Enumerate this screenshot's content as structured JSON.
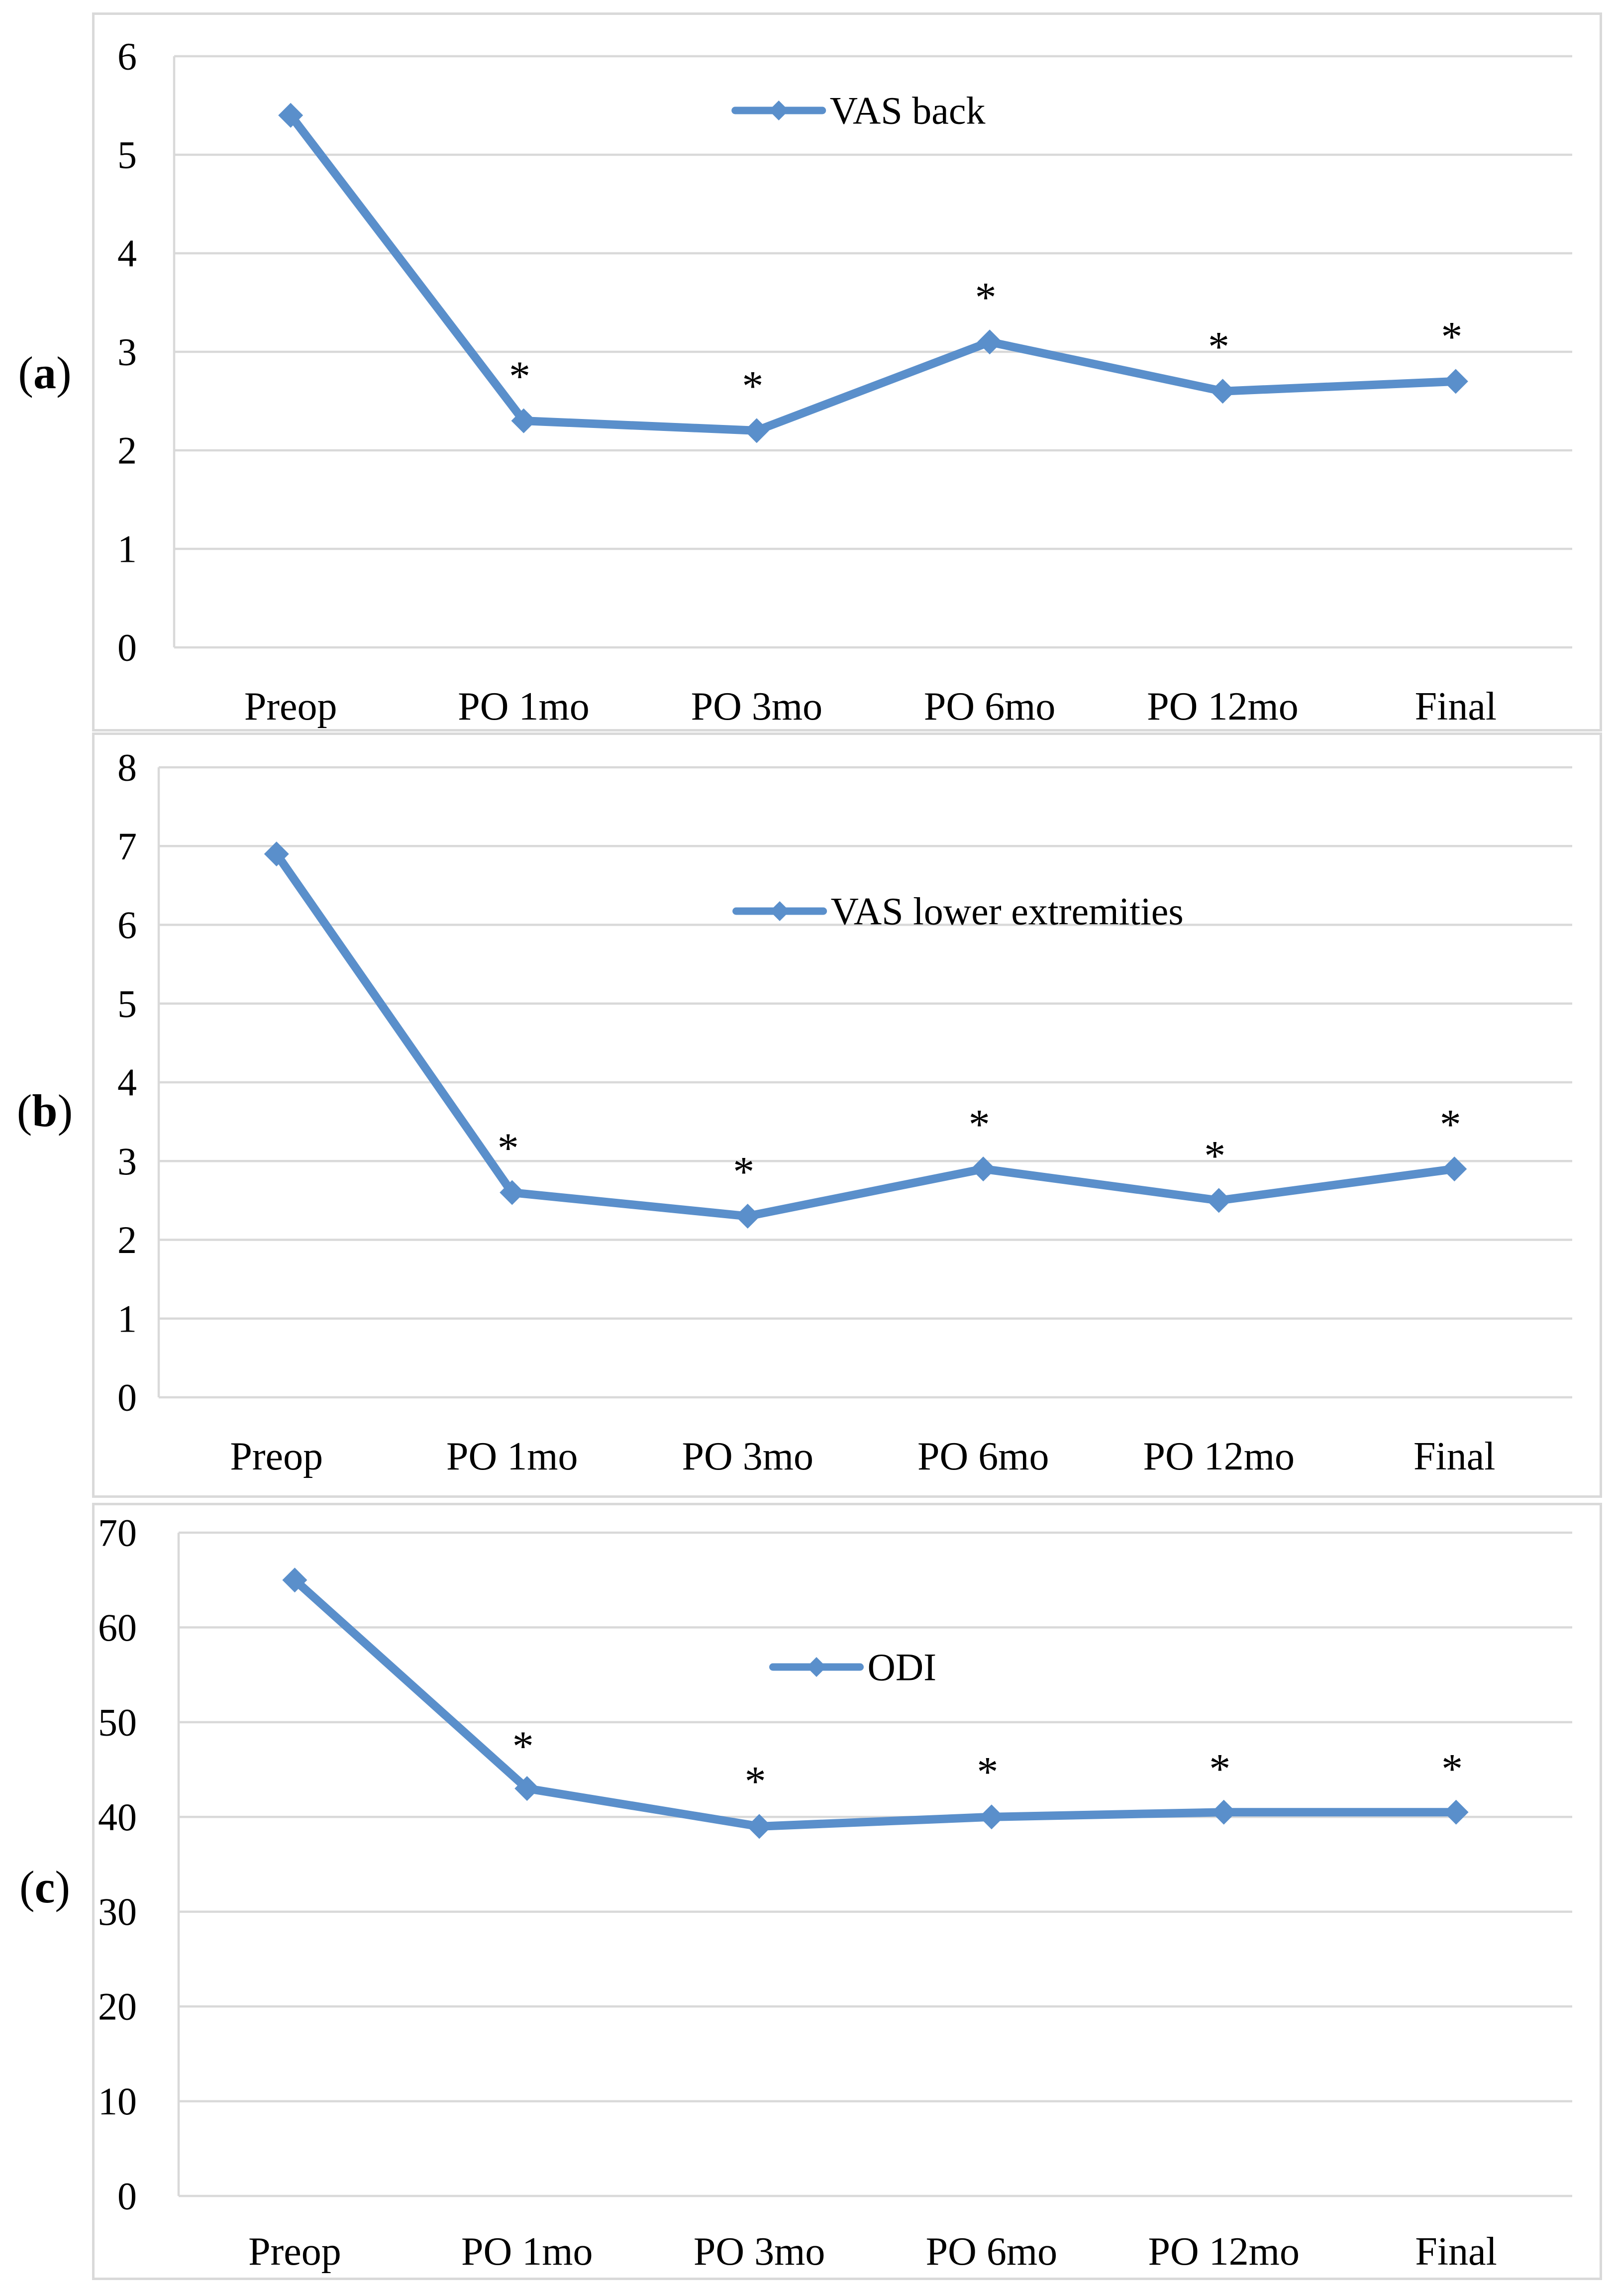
{
  "figure": {
    "panels": [
      {
        "label_prefix": "(",
        "label_letter": "a",
        "label_suffix": ")"
      },
      {
        "label_prefix": "(",
        "label_letter": "b",
        "label_suffix": ")"
      },
      {
        "label_prefix": "(",
        "label_letter": "c",
        "label_suffix": ")"
      }
    ]
  },
  "colors": {
    "series_line": "#5A8FCB",
    "gridline": "#D9D9D9",
    "panel_border": "#D9D9D9",
    "text": "#000000",
    "background": "#FFFFFF"
  },
  "chart_data": [
    {
      "type": "line",
      "panel": "a",
      "title": "",
      "legend_label": "VAS back",
      "legend_position": "top-center-inside",
      "marker": "diamond",
      "grid": true,
      "categories": [
        "Preop",
        "PO 1mo",
        "PO 3mo",
        "PO 6mo",
        "PO 12mo",
        "Final"
      ],
      "values": [
        5.4,
        2.3,
        2.2,
        3.1,
        2.6,
        2.7
      ],
      "ylim": [
        0,
        6
      ],
      "yticks": [
        0,
        1,
        2,
        3,
        4,
        5,
        6
      ],
      "annotations": [
        {
          "category": "PO 1mo",
          "text": "*",
          "y": 2.9
        },
        {
          "category": "PO 3mo",
          "text": "*",
          "y": 2.8
        },
        {
          "category": "PO 6mo",
          "text": "*",
          "y": 3.7
        },
        {
          "category": "PO 12mo",
          "text": "*",
          "y": 3.2
        },
        {
          "category": "Final",
          "text": "*",
          "y": 3.3
        }
      ]
    },
    {
      "type": "line",
      "panel": "b",
      "title": "",
      "legend_label": "VAS lower extremities",
      "legend_position": "top-center-inside",
      "marker": "diamond",
      "grid": true,
      "categories": [
        "Preop",
        "PO 1mo",
        "PO 3mo",
        "PO 6mo",
        "PO 12mo",
        "Final"
      ],
      "values": [
        6.9,
        2.6,
        2.3,
        2.9,
        2.5,
        2.9
      ],
      "ylim": [
        0,
        8
      ],
      "yticks": [
        0,
        1,
        2,
        3,
        4,
        5,
        6,
        7,
        8
      ],
      "annotations": [
        {
          "category": "PO 1mo",
          "text": "*",
          "y": 3.35
        },
        {
          "category": "PO 3mo",
          "text": "*",
          "y": 3.05
        },
        {
          "category": "PO 6mo",
          "text": "*",
          "y": 3.65
        },
        {
          "category": "PO 12mo",
          "text": "*",
          "y": 3.25
        },
        {
          "category": "Final",
          "text": "*",
          "y": 3.65
        }
      ]
    },
    {
      "type": "line",
      "panel": "c",
      "title": "",
      "legend_label": "ODI",
      "legend_position": "top-center-inside",
      "marker": "diamond",
      "grid": true,
      "categories": [
        "Preop",
        "PO 1mo",
        "PO 3mo",
        "PO 6mo",
        "PO 12mo",
        "Final"
      ],
      "values": [
        65,
        43,
        39,
        40,
        40.5,
        40.5
      ],
      "ylim": [
        0,
        70
      ],
      "yticks": [
        0,
        10,
        20,
        30,
        40,
        50,
        60,
        70
      ],
      "annotations": [
        {
          "category": "PO 1mo",
          "text": "*",
          "y": 49
        },
        {
          "category": "PO 3mo",
          "text": "*",
          "y": 45.3
        },
        {
          "category": "PO 6mo",
          "text": "*",
          "y": 46.3
        },
        {
          "category": "PO 12mo",
          "text": "*",
          "y": 46.6
        },
        {
          "category": "Final",
          "text": "*",
          "y": 46.6
        }
      ]
    }
  ]
}
